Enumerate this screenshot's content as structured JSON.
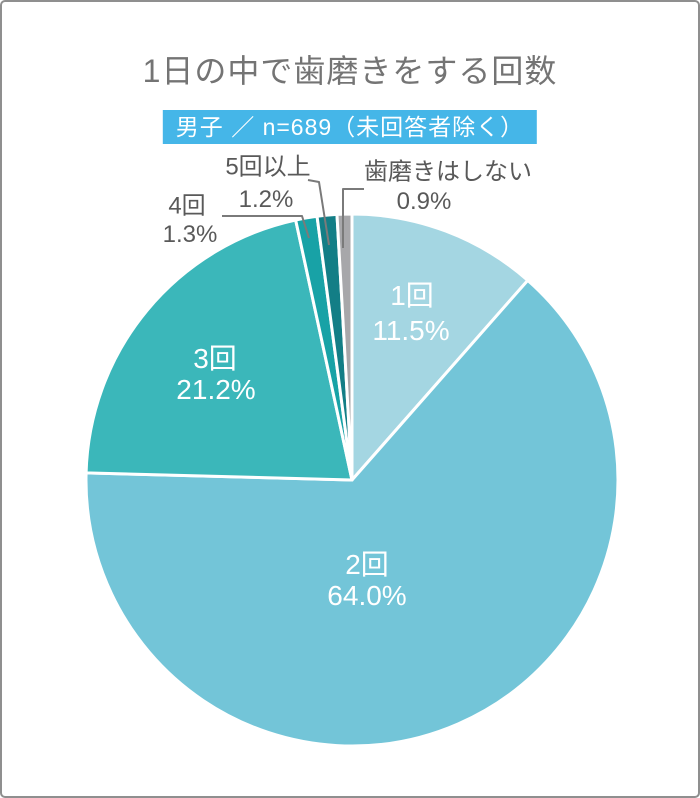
{
  "title": "1日の中で歯磨きをする回数",
  "badge": {
    "text": "男子 ／ n=689（未回答者除く）",
    "bg_color": "#45b6e8"
  },
  "chart_data": {
    "type": "pie",
    "title": "1日の中で歯磨きをする回数",
    "subtitle": "男子 ／ n=689（未回答者除く）",
    "sample_size": 689,
    "unit": "%",
    "start_angle_deg": 0,
    "direction": "clockwise",
    "categories": [
      "1回",
      "2回",
      "3回",
      "4回",
      "5回以上",
      "歯磨きはしない"
    ],
    "values": [
      11.5,
      64.0,
      21.2,
      1.3,
      1.2,
      0.9
    ],
    "pct_labels": [
      "11.5%",
      "64.0%",
      "21.2%",
      "1.3%",
      "1.2%",
      "0.9%"
    ],
    "colors": [
      "#a4d6e2",
      "#73c5d8",
      "#3bb7ba",
      "#18a2a6",
      "#137e86",
      "#a7a7aa"
    ],
    "label_placement": [
      "inside",
      "inside",
      "inside",
      "outside",
      "outside",
      "outside"
    ],
    "slice_border_color": "#ffffff",
    "leader_line_color": "#7a7a7a"
  }
}
